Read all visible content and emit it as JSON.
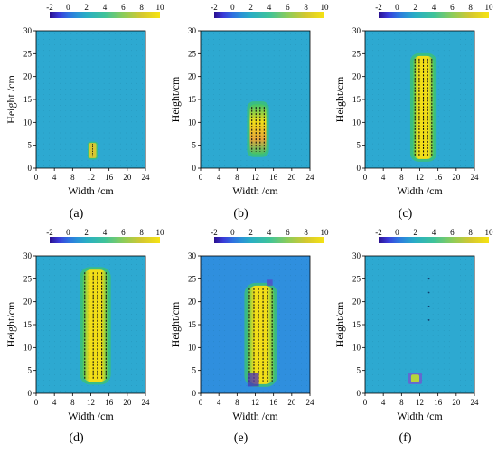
{
  "colorbar": {
    "ticks": [
      "-2",
      "0",
      "2",
      "4",
      "6",
      "8",
      "10"
    ],
    "min": -2,
    "max": 10,
    "stops": [
      {
        "v": -2,
        "c": "#2a0f8f"
      },
      {
        "v": -1,
        "c": "#3a3ad8"
      },
      {
        "v": 0,
        "c": "#2f6fe0"
      },
      {
        "v": 1,
        "c": "#2a93d6"
      },
      {
        "v": 2,
        "c": "#29aec4"
      },
      {
        "v": 4,
        "c": "#3fc39a"
      },
      {
        "v": 6,
        "c": "#8ccc5a"
      },
      {
        "v": 8,
        "c": "#d4c830"
      },
      {
        "v": 10,
        "c": "#f6e312"
      }
    ]
  },
  "colors": {
    "background_field": "#2da9d1",
    "field_e": "#2f8fde",
    "plume_core": "#f2de18",
    "plume_warm": "#e8a63a",
    "plume_green": "#3ec46b",
    "vectors": "#111111"
  },
  "chart_data": [
    {
      "type": "heatmap",
      "panel": "(a)",
      "xlabel": "Width /cm",
      "ylabel": "Height /cm",
      "x_ticks": [
        "0",
        "4",
        "8",
        "12",
        "16",
        "20",
        "24"
      ],
      "y_ticks": [
        "0",
        "5",
        "10",
        "15",
        "20",
        "25",
        "30"
      ],
      "xlim": [
        0,
        24
      ],
      "ylim": [
        0,
        30
      ],
      "colorbar_range": [
        -2,
        10
      ],
      "vectors": true,
      "plume": {
        "x_center": 12.4,
        "width": 1.6,
        "y_bottom": 2.2,
        "y_top": 5.5,
        "peak": 6
      }
    },
    {
      "type": "heatmap",
      "panel": "(b)",
      "xlabel": "Width /cm",
      "ylabel": "Height/cm",
      "x_ticks": [
        "0",
        "4",
        "8",
        "12",
        "16",
        "20",
        "24"
      ],
      "y_ticks": [
        "0",
        "5",
        "10",
        "15",
        "20",
        "25",
        "30"
      ],
      "xlim": [
        0,
        24
      ],
      "ylim": [
        0,
        30
      ],
      "colorbar_range": [
        -2,
        10
      ],
      "vectors": true,
      "plume": {
        "x_center": 12.6,
        "width": 3.6,
        "y_bottom": 3.0,
        "y_top": 14.0,
        "peak": 8
      }
    },
    {
      "type": "heatmap",
      "panel": "(c)",
      "xlabel": "Width /cm",
      "ylabel": "Height/cm",
      "x_ticks": [
        "0",
        "4",
        "8",
        "12",
        "16",
        "20",
        "24"
      ],
      "y_ticks": [
        "0",
        "5",
        "10",
        "15",
        "20",
        "25",
        "30"
      ],
      "xlim": [
        0,
        24
      ],
      "ylim": [
        0,
        30
      ],
      "colorbar_range": [
        -2,
        10
      ],
      "vectors": true,
      "plume": {
        "x_center": 12.8,
        "width": 4.6,
        "y_bottom": 2.0,
        "y_top": 24.5,
        "peak": 10
      }
    },
    {
      "type": "heatmap",
      "panel": "(d)",
      "xlabel": "Width /cm",
      "ylabel": "Height/cm",
      "x_ticks": [
        "0",
        "4",
        "8",
        "12",
        "16",
        "20",
        "24"
      ],
      "y_ticks": [
        "0",
        "5",
        "10",
        "15",
        "20",
        "25",
        "30"
      ],
      "xlim": [
        0,
        24
      ],
      "ylim": [
        0,
        30
      ],
      "colorbar_range": [
        -2,
        10
      ],
      "vectors": true,
      "plume": {
        "x_center": 13.0,
        "width": 5.6,
        "y_bottom": 2.5,
        "y_top": 27.0,
        "peak": 10
      }
    },
    {
      "type": "heatmap",
      "panel": "(e)",
      "xlabel": "Width /cm",
      "ylabel": "Height/cm",
      "x_ticks": [
        "0",
        "4",
        "8",
        "12",
        "16",
        "20",
        "24"
      ],
      "y_ticks": [
        "0",
        "5",
        "10",
        "15",
        "20",
        "25",
        "30"
      ],
      "xlim": [
        0,
        24
      ],
      "ylim": [
        0,
        30
      ],
      "colorbar_range": [
        -2,
        10
      ],
      "vectors": true,
      "plume": {
        "x_center": 13.2,
        "width": 6.0,
        "y_bottom": 2.0,
        "y_top": 23.5,
        "peak": 10
      }
    },
    {
      "type": "heatmap",
      "panel": "(f)",
      "xlabel": "Width /cm",
      "ylabel": "Height/cm",
      "x_ticks": [
        "0",
        "4",
        "8",
        "12",
        "16",
        "20",
        "24"
      ],
      "y_ticks": [
        "0",
        "5",
        "10",
        "15",
        "20",
        "25",
        "30"
      ],
      "xlim": [
        0,
        24
      ],
      "ylim": [
        0,
        30
      ],
      "colorbar_range": [
        -2,
        10
      ],
      "vectors": true,
      "plume": {
        "x_center": 11.0,
        "width": 3.0,
        "y_bottom": 2.0,
        "y_top": 4.5,
        "peak": 3
      }
    }
  ]
}
